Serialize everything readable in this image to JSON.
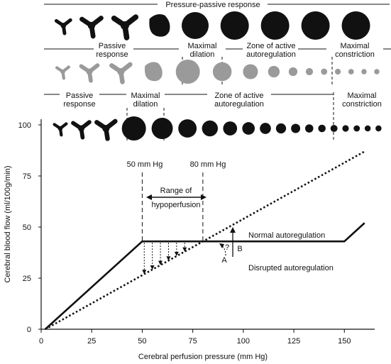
{
  "colors": {
    "ink": "#111111",
    "gray": "#9a9a9a",
    "background": "#ffffff"
  },
  "bands": [
    {
      "color": "#111111",
      "labels": [
        "Pressure-passive response"
      ],
      "vessels": [
        {
          "kind": "branch",
          "size": 0.55
        },
        {
          "kind": "branch",
          "size": 0.75
        },
        {
          "kind": "branch",
          "size": 0.85
        },
        {
          "kind": "blob",
          "size": 0.8
        },
        {
          "kind": "circle",
          "size": 0.95
        },
        {
          "kind": "circle",
          "size": 1.0
        },
        {
          "kind": "circle",
          "size": 1.0
        },
        {
          "kind": "circle",
          "size": 1.0
        },
        {
          "kind": "circle",
          "size": 1.0
        }
      ]
    },
    {
      "color": "#9a9a9a",
      "labels": [
        "Passive",
        "response",
        "Maximal",
        "dilation",
        "Zone of active",
        "autoregulation",
        "Maximal",
        "constriction"
      ],
      "vessels": [
        {
          "kind": "branch",
          "size": 0.55
        },
        {
          "kind": "branch",
          "size": 0.75
        },
        {
          "kind": "branch",
          "size": 0.85
        },
        {
          "kind": "blob",
          "size": 0.8
        },
        {
          "kind": "circle",
          "size": 1.0
        },
        {
          "kind": "circle",
          "size": 0.78
        },
        {
          "kind": "circle",
          "size": 0.62
        },
        {
          "kind": "circle",
          "size": 0.48
        },
        {
          "kind": "circle",
          "size": 0.36
        },
        {
          "kind": "circle",
          "size": 0.3
        },
        {
          "kind": "circle",
          "size": 0.26
        },
        {
          "kind": "circle",
          "size": 0.24
        },
        {
          "kind": "circle",
          "size": 0.23
        },
        {
          "kind": "circle",
          "size": 0.22
        },
        {
          "kind": "circle",
          "size": 0.22
        }
      ]
    },
    {
      "color": "#111111",
      "labels": [
        "Passive",
        "response",
        "Maximal",
        "dilation",
        "Zone of active",
        "autoregulation",
        "Maximal",
        "constriction"
      ],
      "vessels": [
        {
          "kind": "branch",
          "size": 0.55
        },
        {
          "kind": "branch",
          "size": 0.75
        },
        {
          "kind": "branch",
          "size": 0.85
        },
        {
          "kind": "circle",
          "size": 1.0
        },
        {
          "kind": "circle",
          "size": 0.88
        },
        {
          "kind": "circle",
          "size": 0.76
        },
        {
          "kind": "circle",
          "size": 0.66
        },
        {
          "kind": "circle",
          "size": 0.58
        },
        {
          "kind": "circle",
          "size": 0.52
        },
        {
          "kind": "circle",
          "size": 0.46
        },
        {
          "kind": "circle",
          "size": 0.42
        },
        {
          "kind": "circle",
          "size": 0.38
        },
        {
          "kind": "circle",
          "size": 0.34
        },
        {
          "kind": "circle",
          "size": 0.31
        },
        {
          "kind": "circle",
          "size": 0.29
        },
        {
          "kind": "circle",
          "size": 0.27
        },
        {
          "kind": "circle",
          "size": 0.26
        },
        {
          "kind": "circle",
          "size": 0.25
        },
        {
          "kind": "circle",
          "size": 0.25
        }
      ]
    }
  ],
  "chart_data": {
    "type": "line",
    "title": "",
    "xlabel": "Cerebral perfusion pressure (mm Hg)",
    "ylabel": "Cerebral blood flow (ml/100g/min)",
    "xlim": [
      0,
      165
    ],
    "ylim": [
      0,
      100
    ],
    "xticks": [
      "0",
      "25",
      "50",
      "75",
      "100",
      "125",
      "150"
    ],
    "yticks": [
      "0",
      "25",
      "50",
      "75",
      "100"
    ],
    "grid": false,
    "series": [
      {
        "name": "Normal autoregulation",
        "style": "solid",
        "x": [
          2,
          50,
          150,
          160
        ],
        "y": [
          0,
          43,
          43,
          52
        ]
      },
      {
        "name": "Disrupted autoregulation",
        "style": "dotted",
        "x": [
          2,
          160
        ],
        "y": [
          0,
          87
        ]
      }
    ],
    "annotations": {
      "marker_left": "50 mm Hg",
      "marker_right": "80 mm Hg",
      "range_label_1": "Range of",
      "range_label_2": "hypoperfusion",
      "point_a": "A",
      "point_b": "B",
      "question": "?"
    }
  }
}
